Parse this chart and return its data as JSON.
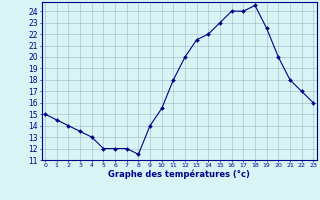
{
  "hours": [
    0,
    1,
    2,
    3,
    4,
    5,
    6,
    7,
    8,
    9,
    10,
    11,
    12,
    13,
    14,
    15,
    16,
    17,
    18,
    19,
    20,
    21,
    22,
    23
  ],
  "temperatures": [
    15.0,
    14.5,
    14.0,
    13.5,
    13.0,
    12.0,
    12.0,
    12.0,
    11.5,
    14.0,
    15.5,
    18.0,
    20.0,
    21.5,
    22.0,
    23.0,
    24.0,
    24.0,
    24.5,
    22.5,
    20.0,
    18.0,
    17.0,
    16.0
  ],
  "ylim": [
    11,
    24.8
  ],
  "yticks": [
    11,
    12,
    13,
    14,
    15,
    16,
    17,
    18,
    19,
    20,
    21,
    22,
    23,
    24
  ],
  "xlim": [
    -0.3,
    23.3
  ],
  "xlabel": "Graphe des températures (°c)",
  "line_color": "#00008b",
  "marker_color": "#00008b",
  "bg_color": "#d8f4f4",
  "grid_color": "#a0b8c8",
  "axis_color": "#00008b",
  "tick_color": "#00008b",
  "label_color": "#00008b"
}
